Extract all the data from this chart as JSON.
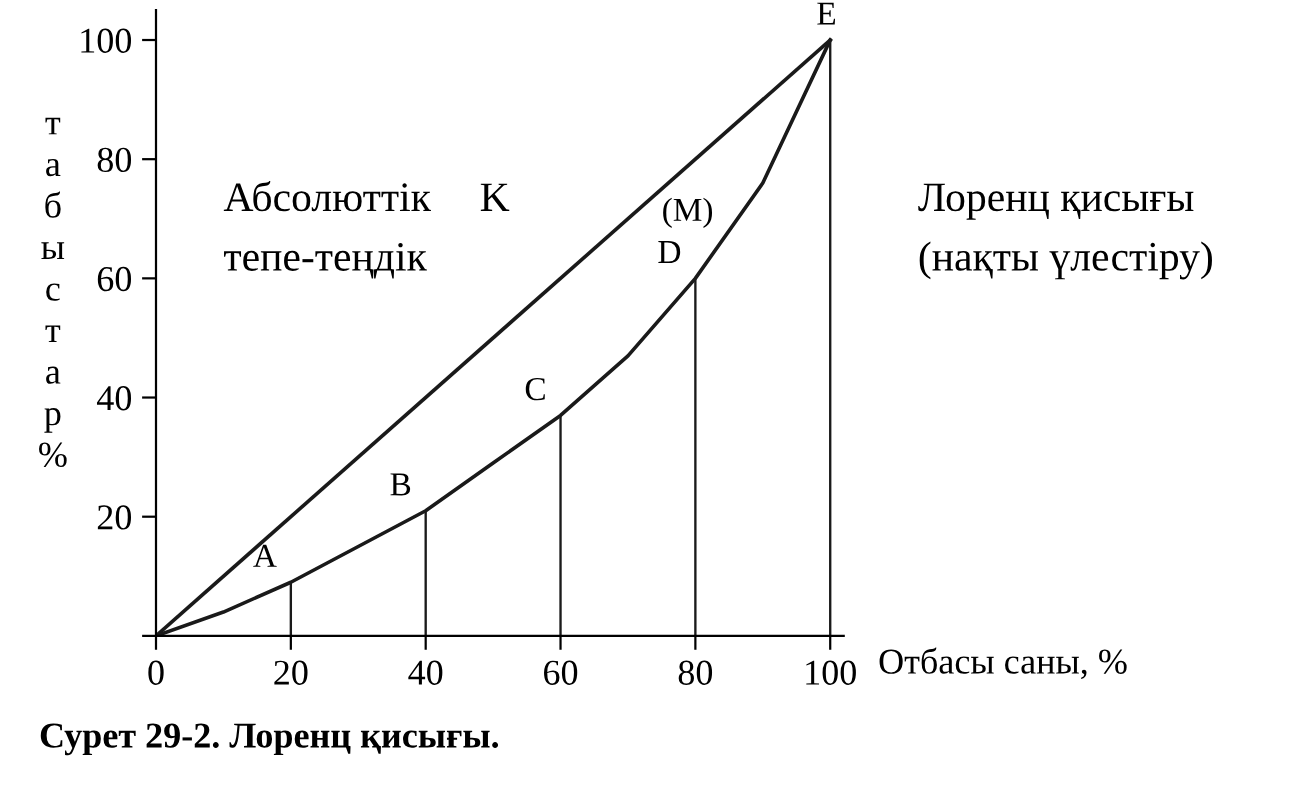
{
  "chart_data": {
    "type": "line",
    "title": "Сурет 29-2. Лоренц қисығы.",
    "xlabel": "Отбасы саны, %",
    "ylabel": "табыстар %",
    "xlim": [
      0,
      102
    ],
    "ylim": [
      0,
      105
    ],
    "xticks": [
      0,
      20,
      40,
      60,
      80,
      100
    ],
    "yticks": [
      {
        "value": 0,
        "label": null
      },
      20,
      40,
      60,
      80,
      100
    ],
    "grid": false,
    "legend": false,
    "marker": "none",
    "line_style": "solid",
    "series": [
      {
        "color": "#1a1a1a",
        "x": [
          0,
          100
        ],
        "values": [
          0,
          100
        ]
      },
      {
        "color": "#1a1a1a",
        "x": [
          0,
          10,
          20,
          30,
          40,
          50,
          60,
          70,
          80,
          90,
          100
        ],
        "values": [
          0,
          4,
          9,
          15,
          21,
          29,
          37,
          47,
          60,
          76,
          100
        ]
      },
      {
        "type": "bar",
        "color": "#1a1a1a",
        "x": [
          20,
          40,
          60,
          80,
          100
        ],
        "values": [
          9,
          21,
          37,
          60,
          100
        ]
      }
    ],
    "annotations": [
      {
        "text": "A",
        "x": 20,
        "y": 9
      },
      {
        "text": "B",
        "x": 40,
        "y": 21
      },
      {
        "text": "C",
        "x": 60,
        "y": 37
      },
      {
        "text": "D",
        "x": 80,
        "y": 60
      },
      "(M)",
      {
        "text": "E",
        "x": 100,
        "y": 100
      },
      "Абсолюттік",
      "K",
      "тепе-теңдік",
      "Лоренц қисығы",
      "(нақты үлестіру)"
    ]
  }
}
